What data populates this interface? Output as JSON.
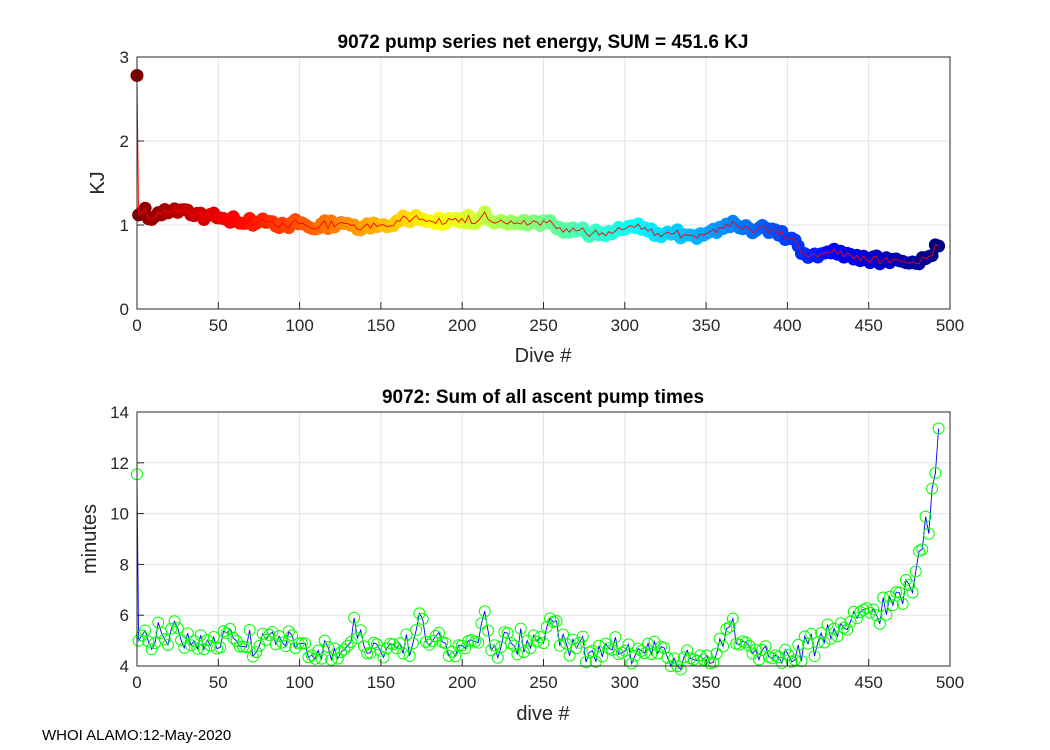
{
  "chart_data": [
    {
      "type": "scatter",
      "title": "9072 pump series net energy, SUM = 451.6 KJ",
      "xlabel": "Dive #",
      "ylabel": "KJ",
      "xlim": [
        0,
        500
      ],
      "ylim": [
        0,
        3
      ],
      "xticks": [
        "0",
        "50",
        "100",
        "150",
        "200",
        "250",
        "300",
        "350",
        "400",
        "450",
        "500"
      ],
      "yticks": [
        "0",
        "1",
        "2",
        "3"
      ],
      "grid": true,
      "marker_colormap": "jet",
      "line_color": "#ff0000",
      "x": [
        0,
        1,
        3,
        5,
        8,
        11,
        15,
        20,
        25,
        30,
        40,
        50,
        60,
        70,
        80,
        90,
        100,
        110,
        120,
        130,
        140,
        150,
        160,
        170,
        180,
        190,
        200,
        210,
        213,
        220,
        230,
        240,
        250,
        260,
        270,
        280,
        290,
        300,
        307,
        310,
        320,
        330,
        340,
        350,
        360,
        366,
        370,
        380,
        385,
        390,
        400,
        405,
        410,
        420,
        430,
        440,
        450,
        460,
        470,
        480,
        485,
        490,
        493
      ],
      "y": [
        2.78,
        1.12,
        1.15,
        1.2,
        1.08,
        1.1,
        1.12,
        1.18,
        1.15,
        1.18,
        1.12,
        1.1,
        1.05,
        1.03,
        1.02,
        1.0,
        1.02,
        1.0,
        1.0,
        1.02,
        0.98,
        1.0,
        1.05,
        1.08,
        1.05,
        1.02,
        1.08,
        1.05,
        1.12,
        1.02,
        1.05,
        1.0,
        1.05,
        0.97,
        0.93,
        0.9,
        0.92,
        0.95,
        1.02,
        0.95,
        0.9,
        0.9,
        0.88,
        0.9,
        0.95,
        1.05,
        1.0,
        0.93,
        1.0,
        0.92,
        0.85,
        0.82,
        0.65,
        0.63,
        0.68,
        0.62,
        0.6,
        0.58,
        0.58,
        0.52,
        0.6,
        0.7,
        0.75
      ]
    },
    {
      "type": "line",
      "title": "9072: Sum of all ascent pump times",
      "xlabel": "dive #",
      "ylabel": "minutes",
      "xlim": [
        0,
        500
      ],
      "ylim": [
        4,
        14
      ],
      "xticks": [
        "0",
        "50",
        "100",
        "150",
        "200",
        "250",
        "300",
        "350",
        "400",
        "450",
        "500"
      ],
      "yticks": [
        "4",
        "6",
        "8",
        "10",
        "12",
        "14"
      ],
      "grid": true,
      "marker": "open-circle",
      "marker_color": "#00ff00",
      "line_color": "#0000ff",
      "x": [
        0,
        1,
        3,
        5,
        10,
        15,
        20,
        25,
        30,
        40,
        50,
        55,
        60,
        70,
        80,
        90,
        100,
        110,
        120,
        130,
        135,
        140,
        150,
        160,
        170,
        173,
        180,
        190,
        200,
        205,
        210,
        213,
        220,
        230,
        240,
        250,
        256,
        260,
        270,
        280,
        290,
        300,
        310,
        320,
        330,
        340,
        350,
        360,
        367,
        370,
        380,
        390,
        400,
        410,
        420,
        430,
        440,
        450,
        455,
        460,
        465,
        470,
        475,
        478,
        480,
        483,
        485,
        487,
        489,
        491,
        493
      ],
      "y": [
        11.55,
        5.0,
        5.2,
        5.4,
        5.1,
        5.3,
        5.2,
        5.5,
        5.1,
        5.0,
        4.9,
        5.3,
        5.0,
        4.9,
        4.8,
        4.9,
        4.8,
        4.8,
        4.7,
        4.8,
        5.6,
        4.7,
        4.6,
        4.7,
        4.9,
        5.7,
        4.8,
        4.9,
        4.8,
        5.5,
        4.9,
        5.85,
        4.8,
        4.9,
        5.0,
        4.9,
        5.75,
        4.8,
        4.7,
        4.6,
        4.7,
        4.6,
        4.6,
        4.5,
        4.3,
        4.3,
        4.4,
        4.7,
        5.8,
        4.8,
        4.6,
        4.5,
        4.4,
        4.7,
        5.0,
        5.5,
        5.6,
        5.8,
        6.0,
        6.2,
        6.4,
        6.8,
        7.2,
        7.6,
        7.9,
        8.6,
        9.9,
        9.2,
        11.0,
        11.6,
        13.35
      ]
    }
  ],
  "footer": "WHOI ALAMO:12-May-2020"
}
